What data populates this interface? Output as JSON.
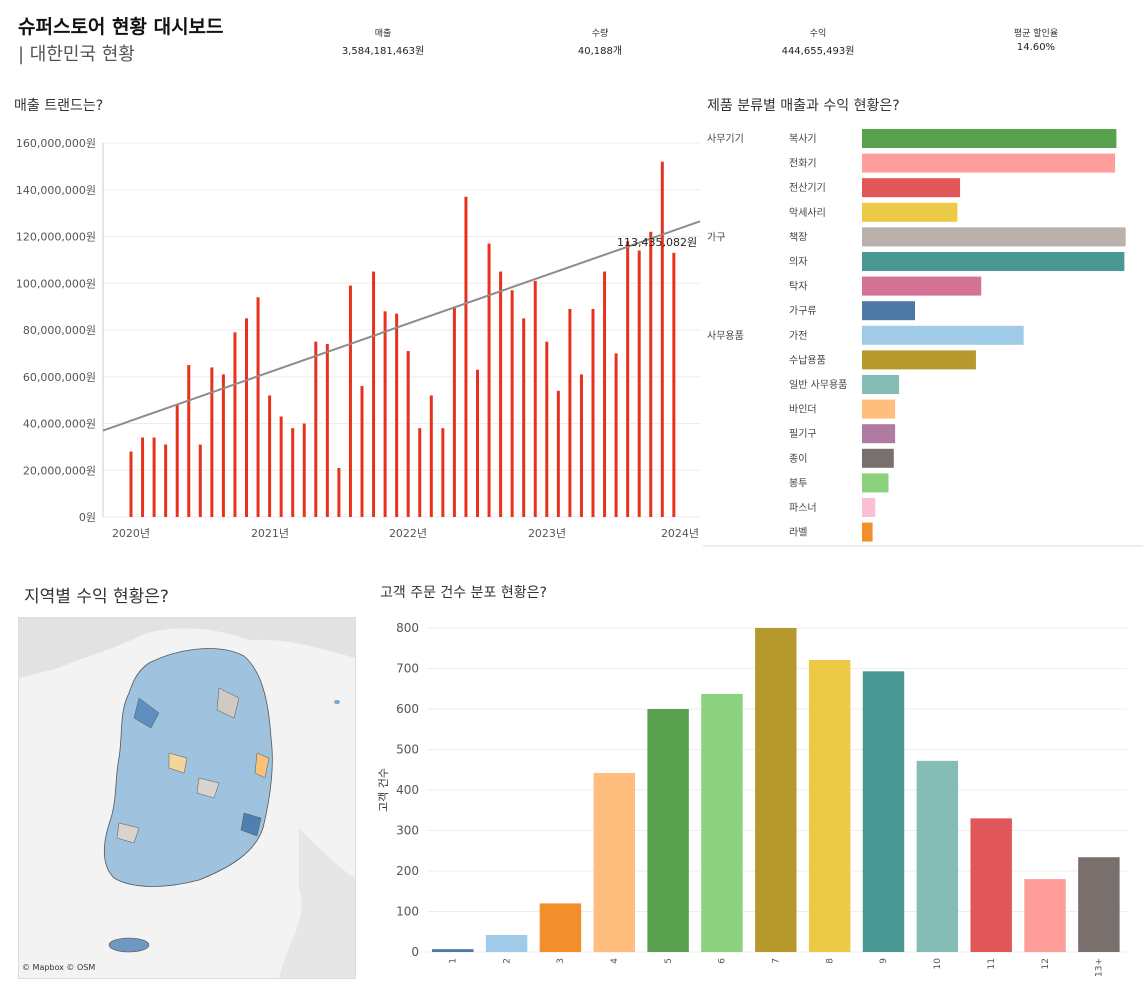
{
  "header": {
    "title": "슈퍼스토어 현황 대시보드",
    "subtitle": "| 대한민국 현황"
  },
  "kpis": [
    {
      "label": "매출",
      "value": "3,584,181,463원"
    },
    {
      "label": "수량",
      "value": "40,188개"
    },
    {
      "label": "수익",
      "value": "444,655,493원"
    },
    {
      "label": "평균 할인율",
      "value": "14.60%"
    }
  ],
  "sales_trend": {
    "title": "매출 트랜드는?",
    "y_ticks": [
      "0원",
      "20,000,000원",
      "40,000,000원",
      "60,000,000원",
      "80,000,000원",
      "100,000,000원",
      "120,000,000원",
      "140,000,000원",
      "160,000,000원"
    ],
    "x_ticks": [
      "2020년",
      "2021년",
      "2022년",
      "2023년",
      "2024년"
    ],
    "trend_label": "113,435,082원",
    "bar_color": "#e8321e",
    "trend_color": "#8c8c8c"
  },
  "category_chart": {
    "title": "제품 분류별 매출과 수익 현황은?",
    "groups": [
      "사무기기",
      "가구",
      "사무용품"
    ]
  },
  "region_map": {
    "title": "지역별 수익 현황은?",
    "credit": "© Mapbox © OSM"
  },
  "orders_chart": {
    "title": "고객 주문 건수 분포 현황은?",
    "ylabel": "고객 건수",
    "y_ticks": [
      "0",
      "100",
      "200",
      "300",
      "400",
      "500",
      "600",
      "700",
      "800"
    ]
  },
  "chart_data": [
    {
      "type": "bar",
      "title": "매출 트랜드는?",
      "x_range": [
        "2020-01",
        "2023-12"
      ],
      "ylim": [
        0,
        160000000
      ],
      "values": [
        28000000,
        34000000,
        34000000,
        31000000,
        48000000,
        65000000,
        31000000,
        64000000,
        61000000,
        79000000,
        85000000,
        94000000,
        52000000,
        43000000,
        38000000,
        40000000,
        75000000,
        74000000,
        21000000,
        99000000,
        56000000,
        105000000,
        88000000,
        87000000,
        71000000,
        38000000,
        52000000,
        38000000,
        90000000,
        137000000,
        63000000,
        117000000,
        105000000,
        97000000,
        85000000,
        101000000,
        75000000,
        54000000,
        89000000,
        61000000,
        89000000,
        105000000,
        70000000,
        118000000,
        114000000,
        122000000,
        152000000,
        113000000
      ],
      "trend_end": 113435082
    },
    {
      "type": "bar",
      "title": "제품 분류별 매출과 수익 현황은?",
      "groups": [
        {
          "name": "사무기기",
          "items": [
            {
              "label": "복사기",
              "value": 0.96,
              "color": "#59a14f"
            },
            {
              "label": "전화기",
              "value": 0.955,
              "color": "#ff9d9a"
            },
            {
              "label": "전산기기",
              "value": 0.37,
              "color": "#e15759"
            },
            {
              "label": "악세사리",
              "value": 0.36,
              "color": "#edc948"
            }
          ]
        },
        {
          "name": "가구",
          "items": [
            {
              "label": "책장",
              "value": 0.995,
              "color": "#bab0ac"
            },
            {
              "label": "의자",
              "value": 0.99,
              "color": "#499894"
            },
            {
              "label": "탁자",
              "value": 0.45,
              "color": "#d37295"
            },
            {
              "label": "가구류",
              "value": 0.2,
              "color": "#4e79a7"
            }
          ]
        },
        {
          "name": "사무용품",
          "items": [
            {
              "label": "가전",
              "value": 0.61,
              "color": "#a0cbe8"
            },
            {
              "label": "수납용품",
              "value": 0.43,
              "color": "#b6992d"
            },
            {
              "label": "일반 사무용품",
              "value": 0.14,
              "color": "#86bcb6"
            },
            {
              "label": "바인더",
              "value": 0.125,
              "color": "#ffbe7d"
            },
            {
              "label": "필기구",
              "value": 0.125,
              "color": "#b07aa1"
            },
            {
              "label": "종이",
              "value": 0.12,
              "color": "#79706e"
            },
            {
              "label": "봉투",
              "value": 0.1,
              "color": "#8cd17d"
            },
            {
              "label": "파스너",
              "value": 0.05,
              "color": "#fabfd2"
            },
            {
              "label": "라벨",
              "value": 0.04,
              "color": "#f28e2b"
            }
          ]
        }
      ]
    },
    {
      "type": "bar",
      "title": "고객 주문 건수 분포 현황은?",
      "ylabel": "고객 건수",
      "ylim": [
        0,
        800
      ],
      "categories": [
        "1",
        "2",
        "3",
        "4",
        "5",
        "6",
        "7",
        "8",
        "9",
        "10",
        "11",
        "12",
        "13+"
      ],
      "values": [
        7,
        42,
        120,
        442,
        600,
        637,
        800,
        721,
        693,
        472,
        330,
        180,
        234
      ],
      "colors": [
        "#4e79a7",
        "#a0cbe8",
        "#f28e2b",
        "#ffbe7d",
        "#59a14f",
        "#8cd17d",
        "#b6992d",
        "#edc948",
        "#499894",
        "#86bcb6",
        "#e15759",
        "#ff9d9a",
        "#79706e"
      ]
    }
  ]
}
